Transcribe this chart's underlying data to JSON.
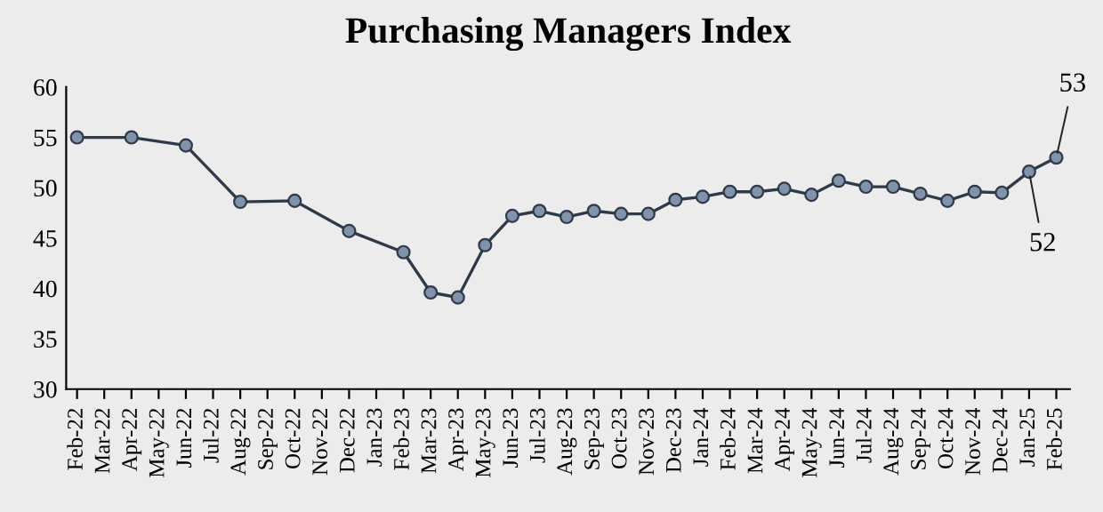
{
  "chart_data": {
    "type": "line",
    "title": "Purchasing Managers Index",
    "categories": [
      "Feb-22",
      "Mar-22",
      "Apr-22",
      "May-22",
      "Jun-22",
      "Jul-22",
      "Aug-22",
      "Sep-22",
      "Oct-22",
      "Nov-22",
      "Dec-22",
      "Jan-23",
      "Feb-23",
      "Mar-23",
      "Apr-23",
      "May-23",
      "Jun-23",
      "Jul-23",
      "Aug-23",
      "Sep-23",
      "Oct-23",
      "Nov-23",
      "Dec-23",
      "Jan-24",
      "Feb-24",
      "Mar-24",
      "Apr-24",
      "May-24",
      "Jun-24",
      "Jul-24",
      "Aug-24",
      "Sep-24",
      "Oct-24",
      "Nov-24",
      "Dec-24",
      "Jan-25",
      "Feb-25"
    ],
    "series": [
      {
        "color": "#2e3a4a",
        "values": [
          55.0,
          null,
          55.0,
          null,
          54.2,
          null,
          48.6,
          null,
          48.7,
          null,
          45.7,
          null,
          43.6,
          39.6,
          39.1,
          44.3,
          47.2,
          47.7,
          47.1,
          47.7,
          47.4,
          47.4,
          48.8,
          49.1,
          49.6,
          49.6,
          49.9,
          49.3,
          50.7,
          50.1,
          50.1,
          49.4,
          48.7,
          49.6,
          49.5,
          51.6,
          53.0
        ],
        "value_labels": [
          null,
          null,
          null,
          null,
          null,
          null,
          null,
          null,
          null,
          null,
          null,
          null,
          null,
          null,
          null,
          null,
          null,
          null,
          null,
          null,
          null,
          null,
          null,
          null,
          null,
          null,
          null,
          null,
          null,
          null,
          null,
          null,
          null,
          null,
          null,
          "52",
          "53"
        ]
      }
    ],
    "ylim": [
      30,
      60
    ],
    "yticks": [
      30,
      35,
      40,
      45,
      50,
      55,
      60
    ],
    "grid": false,
    "legend": false,
    "marker": "circle",
    "line_style": "solid"
  }
}
